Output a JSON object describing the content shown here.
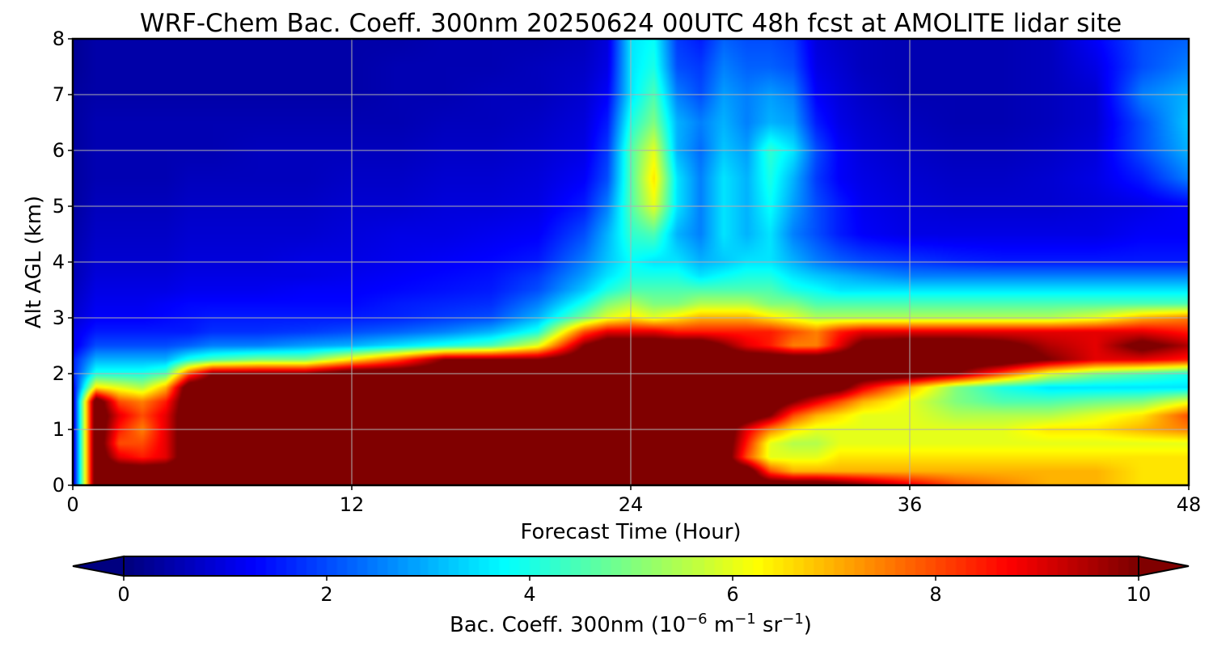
{
  "chart_data": {
    "type": "heatmap",
    "title": "WRF-Chem Bac. Coeff. 300nm  20250624 00UTC 48h fcst at AMOLITE lidar site",
    "xlabel": "Forecast Time (Hour)",
    "ylabel": "Alt AGL (km)",
    "xlim": [
      0,
      48
    ],
    "ylim": [
      0,
      8
    ],
    "x_ticks": [
      "0",
      "12",
      "24",
      "36",
      "48"
    ],
    "x_tick_values": [
      0,
      12,
      24,
      36,
      48
    ],
    "y_ticks": [
      "0",
      "1",
      "2",
      "3",
      "4",
      "5",
      "6",
      "7",
      "8"
    ],
    "y_tick_values": [
      0,
      1,
      2,
      3,
      4,
      5,
      6,
      7,
      8
    ],
    "grid": true,
    "colormap": "jet",
    "colorbar": {
      "min": 0,
      "max": 10,
      "extend": "both",
      "ticks": [
        "0",
        "2",
        "4",
        "6",
        "8",
        "10"
      ],
      "tick_values": [
        0,
        2,
        4,
        6,
        8,
        10
      ],
      "label_text": "Bac. Coeff. 300nm  (10",
      "label_exp1": "−6",
      "label_unit1": " m",
      "label_exp2": "−1",
      "label_unit2": " sr",
      "label_exp3": "−1",
      "label_close": ")"
    },
    "x": [
      0,
      1,
      2,
      3,
      4,
      5,
      6,
      8,
      10,
      12,
      14,
      16,
      18,
      20,
      22,
      23,
      24,
      25,
      26,
      27,
      28,
      29,
      30,
      31,
      32,
      33,
      34,
      36,
      38,
      40,
      42,
      44,
      46,
      48
    ],
    "y": [
      0,
      0.25,
      0.5,
      0.75,
      1,
      1.25,
      1.5,
      1.75,
      2,
      2.25,
      2.5,
      2.75,
      3,
      3.25,
      3.5,
      3.75,
      4,
      4.5,
      5,
      5.5,
      6,
      6.5,
      7,
      7.5,
      8
    ],
    "z_note": "z[j][i]: j follows y (altitude), i follows x (forecast hour); values in 10^-6 m^-1 sr^-1",
    "z": [
      [
        0.5,
        11,
        11,
        11,
        11,
        11,
        11,
        11,
        11,
        11,
        11,
        11,
        11,
        11,
        11,
        11,
        11,
        11,
        11,
        11,
        11,
        11,
        11,
        11,
        11,
        10.5,
        10,
        9,
        8,
        7.5,
        7,
        7,
        6.5,
        6.5
      ],
      [
        0.5,
        11,
        11,
        11,
        11,
        11,
        11,
        11,
        11,
        11,
        11,
        11,
        11,
        11,
        11,
        11,
        11,
        11,
        11,
        11,
        11,
        11,
        8,
        7,
        7,
        7,
        7,
        7,
        7,
        7,
        7,
        7,
        6.5,
        6.5
      ],
      [
        0.5,
        11,
        9,
        8.5,
        9,
        11,
        11,
        11,
        11,
        11,
        11,
        11,
        11,
        11,
        11,
        11,
        11,
        11,
        11,
        11,
        11,
        8,
        6,
        6,
        6,
        6.5,
        6.5,
        6.5,
        6.5,
        6.5,
        6.5,
        6.5,
        6.5,
        6.5
      ],
      [
        0.5,
        11,
        8,
        8,
        9,
        11,
        11,
        11,
        11,
        11,
        11,
        11,
        11,
        11,
        11,
        11,
        11,
        11,
        11,
        11,
        11,
        8.5,
        6,
        5.5,
        5.5,
        6,
        6,
        6,
        6,
        6,
        6,
        6,
        6,
        6
      ],
      [
        0.5,
        11,
        8.5,
        7.5,
        9,
        11,
        11,
        11,
        11,
        11,
        11,
        11,
        11,
        11,
        11,
        11,
        11,
        11,
        11,
        11,
        11,
        9,
        7.5,
        6.5,
        6,
        6,
        6,
        6,
        6,
        6,
        6.5,
        6.5,
        7,
        7.5
      ],
      [
        0.5,
        11,
        9,
        8,
        9,
        11,
        11,
        11,
        11,
        11,
        11,
        11,
        11,
        11,
        11,
        11,
        11,
        11,
        11,
        11,
        11,
        11,
        10,
        8,
        7,
        6.5,
        6,
        6,
        5.5,
        5.5,
        5.5,
        6,
        6.5,
        8
      ],
      [
        0.5,
        11,
        8,
        7.5,
        8.5,
        11,
        11,
        11,
        11,
        11,
        11,
        11,
        11,
        11,
        11,
        11,
        11,
        11,
        11,
        11,
        11,
        11,
        11,
        10,
        9,
        8,
        7,
        6,
        5,
        4.5,
        4.5,
        4.8,
        5,
        6
      ],
      [
        1,
        6.5,
        6,
        5.5,
        7,
        11,
        11,
        11,
        11,
        11,
        11,
        11,
        11,
        11,
        11,
        11,
        11,
        11,
        11,
        11,
        11,
        11,
        11,
        11,
        11,
        10.5,
        9,
        7,
        5,
        4,
        3.5,
        3.5,
        3.5,
        3.5
      ],
      [
        1.5,
        4,
        4,
        4,
        4.5,
        8,
        10,
        10,
        10,
        11,
        11,
        11,
        11,
        11,
        11,
        11,
        11,
        11,
        11,
        11,
        11,
        11,
        11,
        11,
        11,
        11,
        11,
        11,
        10,
        8,
        6,
        5,
        4.5,
        4
      ],
      [
        1.5,
        3,
        3,
        3,
        3,
        4,
        4.5,
        5,
        5,
        6.5,
        8,
        10,
        10,
        10,
        11,
        11,
        11,
        11,
        11,
        11,
        11,
        11,
        11,
        11,
        11,
        11,
        11,
        11,
        11,
        11,
        10,
        9,
        9,
        8.5
      ],
      [
        1,
        2,
        2,
        2,
        2,
        2.2,
        2.5,
        2.5,
        2.8,
        3,
        3.5,
        4,
        4.5,
        6,
        10,
        11,
        11,
        11,
        11,
        11,
        10,
        9,
        8.5,
        7.5,
        7.5,
        9,
        10.5,
        11,
        11,
        10.5,
        9.5,
        9,
        10.5,
        9.5
      ],
      [
        1,
        1.5,
        1.5,
        1.5,
        1.5,
        1.5,
        1.7,
        1.7,
        1.8,
        2,
        2.2,
        2.5,
        3,
        4,
        8,
        9,
        9,
        9,
        8.5,
        8.5,
        8.5,
        8.5,
        8.5,
        8,
        7.5,
        8.5,
        9,
        9,
        9,
        9,
        9,
        9,
        9,
        8.5
      ],
      [
        0.8,
        1.2,
        1.2,
        1.2,
        1.3,
        1.4,
        1.5,
        1.5,
        1.5,
        1.5,
        1.6,
        1.8,
        2,
        3,
        5,
        6,
        6.5,
        6,
        6.5,
        7,
        7,
        7,
        6.5,
        6,
        5.5,
        5.5,
        5.5,
        5.5,
        5.5,
        5.5,
        5.5,
        6,
        7,
        7.5
      ],
      [
        0.7,
        1.1,
        1.1,
        1.1,
        1.2,
        1.3,
        1.3,
        1.3,
        1.3,
        1.3,
        1.5,
        1.6,
        1.7,
        2.5,
        4,
        5,
        5.5,
        5,
        5,
        5.5,
        5.5,
        5.5,
        5,
        5,
        4.5,
        4.5,
        4.5,
        4.5,
        4.5,
        4.5,
        4.5,
        4.5,
        4.5,
        4.5
      ],
      [
        0.6,
        1,
        1,
        1,
        1,
        1.1,
        1.1,
        1.1,
        1.2,
        1.2,
        1.3,
        1.4,
        1.5,
        2,
        3.2,
        4,
        4.5,
        4.5,
        4.5,
        4.5,
        4.5,
        4.5,
        4.5,
        4,
        3.8,
        3.5,
        3.5,
        3.5,
        3.5,
        3.5,
        3.5,
        3.5,
        3.5,
        3.5
      ],
      [
        0.5,
        0.9,
        0.9,
        0.9,
        0.9,
        1,
        1,
        1,
        1,
        1.1,
        1.2,
        1.3,
        1.4,
        1.8,
        2.8,
        3.5,
        4,
        4,
        4,
        3.5,
        3.8,
        4,
        4,
        3.5,
        3.2,
        3,
        2.8,
        2.5,
        2.5,
        2.5,
        2.5,
        2.5,
        2.5,
        2.5
      ],
      [
        0.5,
        0.8,
        0.8,
        0.8,
        0.8,
        0.9,
        0.9,
        0.9,
        1,
        1,
        1.1,
        1.2,
        1.3,
        1.5,
        2.5,
        3.2,
        3.8,
        3.5,
        3.5,
        3,
        3.2,
        3.5,
        3.5,
        3,
        2.5,
        2.2,
        2,
        1.8,
        1.6,
        1.5,
        1.5,
        1.5,
        1.5,
        1.5
      ],
      [
        0.4,
        0.7,
        0.7,
        0.7,
        0.7,
        0.8,
        0.8,
        0.8,
        0.8,
        0.9,
        1,
        1,
        1.1,
        1.2,
        2,
        3,
        4.2,
        4.5,
        3,
        2.5,
        3.5,
        3,
        3.5,
        2.5,
        2,
        1.5,
        1.2,
        1,
        1,
        1,
        1,
        1,
        1.2,
        1.2
      ],
      [
        0.3,
        0.6,
        0.6,
        0.6,
        0.6,
        0.7,
        0.7,
        0.7,
        0.7,
        0.8,
        0.8,
        0.9,
        0.9,
        1,
        1.5,
        2.5,
        4.5,
        6,
        3.5,
        2.5,
        3.5,
        3,
        3.8,
        2.8,
        2,
        1.5,
        1.1,
        0.9,
        0.8,
        0.8,
        0.8,
        0.9,
        1,
        1.2
      ],
      [
        0.3,
        0.5,
        0.5,
        0.5,
        0.5,
        0.6,
        0.6,
        0.6,
        0.6,
        0.7,
        0.7,
        0.8,
        0.8,
        0.9,
        1.2,
        2,
        4.5,
        6.5,
        3.5,
        2.5,
        3.5,
        3,
        4,
        3,
        1.8,
        1.2,
        1,
        0.8,
        0.7,
        0.7,
        0.8,
        1,
        1.5,
        2.5
      ],
      [
        0.3,
        0.5,
        0.5,
        0.5,
        0.5,
        0.5,
        0.5,
        0.6,
        0.6,
        0.6,
        0.6,
        0.7,
        0.7,
        0.8,
        1,
        1.8,
        4.5,
        6,
        3,
        2.3,
        3.2,
        2.8,
        4.2,
        3.5,
        2,
        1.2,
        0.9,
        0.7,
        0.6,
        0.6,
        0.7,
        0.9,
        2,
        3
      ],
      [
        0.3,
        0.5,
        0.5,
        0.5,
        0.5,
        0.5,
        0.5,
        0.5,
        0.5,
        0.5,
        0.5,
        0.6,
        0.6,
        0.7,
        0.9,
        1.5,
        4,
        5,
        3,
        2.5,
        3,
        2.5,
        3,
        2.8,
        1.5,
        1,
        0.8,
        0.6,
        0.5,
        0.5,
        0.6,
        0.8,
        2,
        3.2
      ],
      [
        0.3,
        0.4,
        0.4,
        0.4,
        0.4,
        0.4,
        0.4,
        0.4,
        0.4,
        0.4,
        0.5,
        0.5,
        0.6,
        0.6,
        0.8,
        1.2,
        3.5,
        4.5,
        2.5,
        2,
        2.8,
        2.5,
        2.8,
        2.5,
        1.2,
        0.9,
        0.7,
        0.5,
        0.5,
        0.5,
        0.6,
        0.8,
        2.5,
        3
      ],
      [
        0.2,
        0.4,
        0.4,
        0.4,
        0.4,
        0.4,
        0.4,
        0.4,
        0.4,
        0.4,
        0.5,
        0.5,
        0.5,
        0.6,
        0.7,
        1,
        3.5,
        4,
        2,
        1.8,
        2.5,
        2.2,
        2.2,
        2,
        1,
        0.8,
        0.6,
        0.5,
        0.5,
        0.5,
        0.6,
        1,
        2,
        2.5
      ],
      [
        0.2,
        0.4,
        0.4,
        0.4,
        0.4,
        0.4,
        0.4,
        0.4,
        0.4,
        0.4,
        0.4,
        0.5,
        0.5,
        0.5,
        0.6,
        0.9,
        3.5,
        3.8,
        1.8,
        1.5,
        2.2,
        2,
        2,
        1.8,
        0.9,
        0.7,
        0.6,
        0.5,
        0.5,
        0.5,
        0.6,
        1.2,
        2,
        2.2
      ]
    ]
  }
}
